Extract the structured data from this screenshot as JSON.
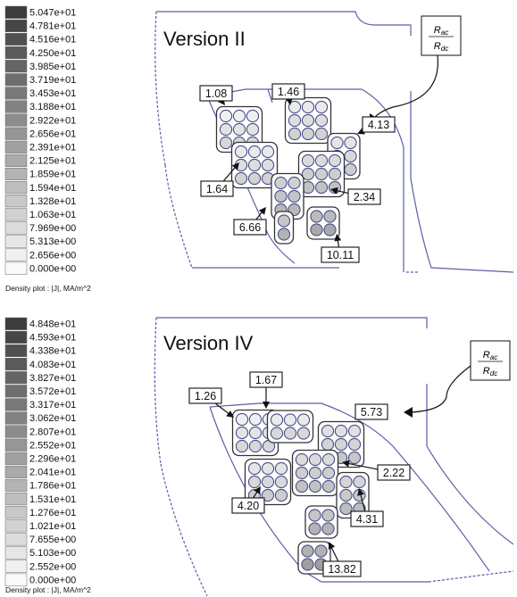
{
  "colors": {
    "outline": "#5b5fa8",
    "conductor_ring": "#4a4f8a",
    "box_stroke": "#222222",
    "text": "#111111",
    "legend_dark": "#3a3a3a",
    "legend_light": "#ffffff"
  },
  "panels": [
    {
      "id": "version-ii",
      "title": "Version II",
      "ratio_numerator": "R_ac",
      "ratio_denominator": "R_dc",
      "legend": {
        "values": [
          "5.047e+01",
          "4.781e+01",
          "4.516e+01",
          "4.250e+01",
          "3.985e+01",
          "3.719e+01",
          "3.453e+01",
          "3.188e+01",
          "2.922e+01",
          "2.656e+01",
          "2.391e+01",
          "2.125e+01",
          "1.859e+01",
          "1.594e+01",
          "1.328e+01",
          "1.063e+01",
          "7.969e+00",
          "5.313e+00",
          "2.656e+00",
          "0.000e+00"
        ],
        "caption": "Density plot : |J|, MA/m^2"
      },
      "labels": [
        "1.08",
        "1.46",
        "4.13",
        "1.64",
        "2.34",
        "6.66",
        "10.11"
      ]
    },
    {
      "id": "version-iv",
      "title": "Version IV",
      "ratio_numerator": "R_ac",
      "ratio_denominator": "R_dc",
      "legend": {
        "values": [
          "4.848e+01",
          "4.593e+01",
          "4.338e+01",
          "4.083e+01",
          "3.827e+01",
          "3.572e+01",
          "3.317e+01",
          "3.062e+01",
          "2.807e+01",
          "2.552e+01",
          "2.296e+01",
          "2.041e+01",
          "1.786e+01",
          "1.531e+01",
          "1.276e+01",
          "1.021e+01",
          "7.655e+00",
          "5.103e+00",
          "2.552e+00",
          "0.000e+00"
        ],
        "caption": "Density plot : |J|, MA/m^2"
      },
      "labels": [
        "1.26",
        "1.67",
        "5.73",
        "2.22",
        "4.20",
        "4.31",
        "13.82"
      ]
    }
  ]
}
